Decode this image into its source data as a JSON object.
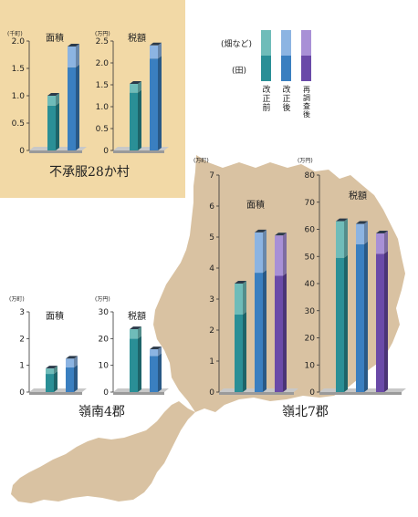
{
  "colors": {
    "panel_bg": "#f2d9a6",
    "map_fill": "#d9c2a2",
    "paddy_before": "#2a8f96",
    "upland_before": "#6fbcb9",
    "paddy_after": "#3a7fc0",
    "upland_after": "#8cb4e2",
    "paddy_reexam": "#6a4aa8",
    "upland_reexam": "#a890d6"
  },
  "legend": {
    "upland_label": "(畑など)",
    "paddy_label": "(田)",
    "columns": [
      "改正前",
      "改正後",
      "再調査後"
    ]
  },
  "groups": {
    "fushofuku": {
      "title": "不承服28か村"
    },
    "reinan": {
      "title": "嶺南4郡"
    },
    "reihoku": {
      "title": "嶺北7郡"
    }
  },
  "chart_data": [
    {
      "type": "bar",
      "group": "不承服28か村",
      "title": "面積",
      "unit": "(千町)",
      "ylim": [
        0,
        2.0
      ],
      "ticks": [
        "0",
        "0.5",
        "1.0",
        "1.5",
        "2.0"
      ],
      "categories": [
        "改正前",
        "改正後"
      ],
      "series": [
        {
          "name": "(田)",
          "values": [
            0.82,
            1.52
          ]
        },
        {
          "name": "(畑など)",
          "values": [
            0.18,
            0.38
          ]
        }
      ]
    },
    {
      "type": "bar",
      "group": "不承服28か村",
      "title": "税額",
      "unit": "(万円)",
      "ylim": [
        0,
        2.5
      ],
      "ticks": [
        "0",
        "0.5",
        "1.0",
        "1.5",
        "2.0",
        "2.5"
      ],
      "categories": [
        "改正前",
        "改正後"
      ],
      "series": [
        {
          "name": "(田)",
          "values": [
            1.32,
            2.1
          ]
        },
        {
          "name": "(畑など)",
          "values": [
            0.2,
            0.3
          ]
        }
      ]
    },
    {
      "type": "bar",
      "group": "嶺南4郡",
      "title": "面積",
      "unit": "(万町)",
      "ylim": [
        0,
        3
      ],
      "ticks": [
        "0",
        "1",
        "2",
        "3"
      ],
      "categories": [
        "改正前",
        "改正後"
      ],
      "series": [
        {
          "name": "(田)",
          "values": [
            0.68,
            0.92
          ]
        },
        {
          "name": "(畑など)",
          "values": [
            0.2,
            0.33
          ]
        }
      ]
    },
    {
      "type": "bar",
      "group": "嶺南4郡",
      "title": "税額",
      "unit": "(万円)",
      "ylim": [
        0,
        30
      ],
      "ticks": [
        "0",
        "10",
        "20",
        "30"
      ],
      "categories": [
        "改正前",
        "改正後"
      ],
      "series": [
        {
          "name": "(田)",
          "values": [
            20,
            13.5
          ]
        },
        {
          "name": "(畑など)",
          "values": [
            3.5,
            2.5
          ]
        }
      ]
    },
    {
      "type": "bar",
      "group": "嶺北7郡",
      "title": "面積",
      "unit": "(万町)",
      "ylim": [
        0,
        7
      ],
      "ticks": [
        "0",
        "1",
        "2",
        "3",
        "4",
        "5",
        "6",
        "7"
      ],
      "categories": [
        "改正前",
        "改正後",
        "再調査後"
      ],
      "series": [
        {
          "name": "(田)",
          "values": [
            2.5,
            3.85,
            3.75
          ]
        },
        {
          "name": "(畑など)",
          "values": [
            1.0,
            1.3,
            1.3
          ]
        }
      ]
    },
    {
      "type": "bar",
      "group": "嶺北7郡",
      "title": "税額",
      "unit": "(万円)",
      "ylim": [
        0,
        80
      ],
      "ticks": [
        "0",
        "10",
        "20",
        "30",
        "40",
        "50",
        "60",
        "70",
        "80"
      ],
      "categories": [
        "改正前",
        "改正後",
        "再調査後"
      ],
      "series": [
        {
          "name": "(田)",
          "values": [
            49.5,
            54.5,
            51
          ]
        },
        {
          "name": "(畑など)",
          "values": [
            13.5,
            7.5,
            7.5
          ]
        }
      ]
    }
  ]
}
